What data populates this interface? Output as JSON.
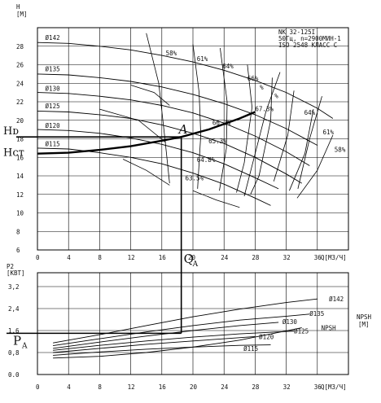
{
  "chart_data": [
    {
      "type": "line",
      "panel": "head",
      "ylabel": "H",
      "yunit": "[M]",
      "xlabel": "Q[M3/Ч]",
      "xlim": [
        0,
        40
      ],
      "ylim": [
        6,
        30
      ],
      "xticks": [
        "0",
        "4",
        "8",
        "12",
        "16",
        "20",
        "24",
        "28",
        "32",
        "36"
      ],
      "yticks": [
        "6",
        "8",
        "10",
        "12",
        "14",
        "16",
        "18",
        "20",
        "22",
        "24",
        "26",
        "28"
      ],
      "grid": true,
      "title_lines": [
        "NK 32-125I",
        "50Гц, n=2900МИН-1",
        "ISO 2548 КЛАСС C"
      ],
      "series": [
        {
          "name": "Ø142",
          "label_at": [
            1,
            28.6
          ],
          "x": [
            0,
            4,
            8,
            12,
            16,
            20,
            24,
            28,
            32,
            36,
            38
          ],
          "y": [
            28.4,
            28.3,
            28.0,
            27.6,
            27.0,
            26.3,
            25.4,
            24.3,
            23.0,
            21.3,
            20.2
          ]
        },
        {
          "name": "Ø135",
          "label_at": [
            1,
            25.2
          ],
          "x": [
            0,
            4,
            8,
            12,
            16,
            20,
            24,
            28,
            32,
            36
          ],
          "y": [
            25.0,
            24.9,
            24.6,
            24.2,
            23.6,
            22.8,
            21.8,
            20.6,
            19.1,
            17.3
          ]
        },
        {
          "name": "Ø130",
          "label_at": [
            1,
            23.1
          ],
          "x": [
            0,
            4,
            8,
            12,
            16,
            20,
            24,
            28,
            32,
            35
          ],
          "y": [
            23.0,
            22.9,
            22.6,
            22.2,
            21.6,
            20.8,
            19.7,
            18.3,
            16.6,
            15.1
          ]
        },
        {
          "name": "Ø125",
          "label_at": [
            1,
            21.2
          ],
          "x": [
            0,
            4,
            8,
            12,
            16,
            20,
            24,
            28,
            32,
            34
          ],
          "y": [
            21.0,
            20.9,
            20.6,
            20.2,
            19.5,
            18.6,
            17.5,
            16.0,
            14.2,
            13.2
          ]
        },
        {
          "name": "Ø120",
          "label_at": [
            1,
            19.1
          ],
          "x": [
            0,
            4,
            8,
            12,
            16,
            20,
            24,
            28,
            31
          ],
          "y": [
            19.0,
            18.9,
            18.6,
            18.1,
            17.4,
            16.5,
            15.3,
            13.8,
            12.6
          ]
        },
        {
          "name": "Ø115",
          "label_at": [
            1,
            17.1
          ],
          "x": [
            0,
            4,
            8,
            12,
            16,
            20,
            24,
            28,
            30
          ],
          "y": [
            17.0,
            16.9,
            16.5,
            16.0,
            15.3,
            14.3,
            13.1,
            11.6,
            10.8
          ]
        }
      ],
      "efficiency_labels": [
        {
          "text": "58%",
          "at": [
            16.5,
            27.0
          ]
        },
        {
          "text": "61%",
          "at": [
            20.5,
            26.4
          ]
        },
        {
          "text": "64%",
          "at": [
            23.8,
            25.6
          ]
        },
        {
          "text": "66%",
          "at": [
            27.0,
            24.3
          ]
        },
        {
          "text": "%",
          "at": [
            28.6,
            23.3
          ]
        },
        {
          "text": "%",
          "at": [
            30.5,
            22.4
          ]
        },
        {
          "text": "67.3%",
          "at": [
            28.0,
            21.0
          ]
        },
        {
          "text": "64%",
          "at": [
            34.3,
            20.6
          ]
        },
        {
          "text": "61%",
          "at": [
            36.7,
            18.5
          ]
        },
        {
          "text": "58%",
          "at": [
            38.2,
            16.6
          ]
        },
        {
          "text": "66.2%",
          "at": [
            22.5,
            19.5
          ]
        },
        {
          "text": "65.3%",
          "at": [
            22.0,
            17.5
          ]
        },
        {
          "text": "64.8%",
          "at": [
            20.5,
            15.5
          ]
        },
        {
          "text": "63.5%",
          "at": [
            19.0,
            13.5
          ]
        }
      ],
      "system_curve": {
        "x": [
          0,
          4,
          8,
          12,
          16,
          18.5,
          22,
          26,
          28
        ],
        "y": [
          16.4,
          16.5,
          16.8,
          17.2,
          17.8,
          18.2,
          19.0,
          20.2,
          20.9
        ]
      },
      "operating_point": {
        "label": "A",
        "x": 18.5,
        "y": 18.2
      },
      "annotations": {
        "H_dot": "Hᴅ",
        "H_st": "Hст",
        "Q_a": "Q",
        "Q_a_sub": "A"
      }
    },
    {
      "type": "line",
      "panel": "power",
      "ylabel": "P2",
      "yunit": "[KBT]",
      "xlabel": "Q[M3/Ч]",
      "right_label": "NPSH",
      "right_unit": "[M]",
      "xlim": [
        0,
        40
      ],
      "ylim": [
        0,
        3.2
      ],
      "xticks": [
        "0",
        "4",
        "8",
        "12",
        "16",
        "20",
        "24",
        "28",
        "32",
        "36"
      ],
      "yticks": [
        "0.0",
        "0,8",
        "1,6",
        "2,4",
        "3,2"
      ],
      "grid": true,
      "series": [
        {
          "name": "Ø142",
          "label_at": [
            37.5,
            2.75
          ],
          "x": [
            2,
            8,
            14,
            20,
            26,
            32,
            36
          ],
          "y": [
            1.15,
            1.45,
            1.78,
            2.1,
            2.38,
            2.62,
            2.75
          ]
        },
        {
          "name": "Ø135",
          "label_at": [
            35.0,
            2.22
          ],
          "x": [
            2,
            8,
            14,
            20,
            26,
            32,
            35
          ],
          "y": [
            1.05,
            1.3,
            1.55,
            1.78,
            1.98,
            2.12,
            2.2
          ]
        },
        {
          "name": "Ø130",
          "label_at": [
            31.5,
            1.92
          ],
          "x": [
            2,
            8,
            14,
            20,
            26,
            31
          ],
          "y": [
            0.95,
            1.18,
            1.4,
            1.6,
            1.78,
            1.9
          ]
        },
        {
          "name": "Ø125",
          "label_at": [
            33.0,
            1.58
          ],
          "x": [
            2,
            8,
            14,
            20,
            26,
            33
          ],
          "y": [
            0.88,
            1.06,
            1.22,
            1.36,
            1.48,
            1.58
          ]
        },
        {
          "name": "Ø120",
          "label_at": [
            28.5,
            1.38
          ],
          "x": [
            2,
            8,
            14,
            20,
            28
          ],
          "y": [
            0.8,
            0.95,
            1.1,
            1.22,
            1.38
          ]
        },
        {
          "name": "Ø115",
          "label_at": [
            26.5,
            0.95
          ],
          "x": [
            2,
            8,
            14,
            20,
            26,
            30
          ],
          "y": [
            0.7,
            0.82,
            0.92,
            1.0,
            1.06,
            1.08
          ]
        }
      ],
      "npsh": {
        "name": "NPSH",
        "label_at": [
          36.5,
          1.7
        ],
        "x": [
          2,
          8,
          14,
          20,
          26,
          34
        ],
        "y": [
          0.6,
          0.66,
          0.8,
          1.0,
          1.25,
          1.7
        ]
      },
      "operating_power": {
        "label": "P",
        "sub": "A",
        "y": 1.5
      }
    }
  ]
}
